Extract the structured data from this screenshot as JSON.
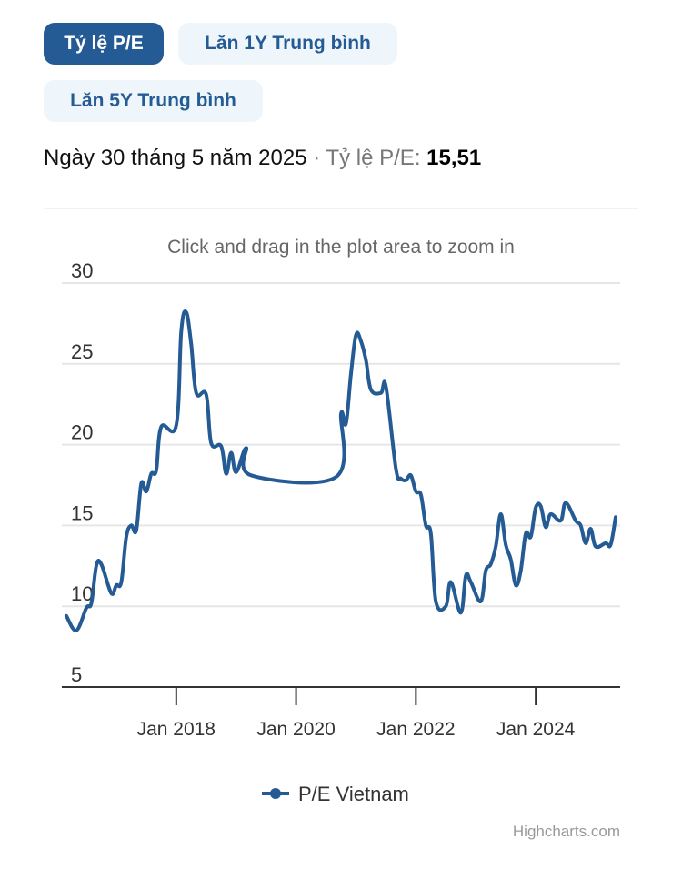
{
  "tabs": [
    {
      "label": "Tỷ lệ P/E",
      "active": true
    },
    {
      "label": "Lăn 1Y Trung bình",
      "active": false
    },
    {
      "label": "Lăn 5Y Trung bình",
      "active": false
    }
  ],
  "info": {
    "date": "Ngày 30 tháng 5 năm 2025",
    "separator": "·",
    "label": "Tỷ lệ P/E:",
    "value": "15,51"
  },
  "credit": "Highcharts.com",
  "colors": {
    "series": "#255b94",
    "grid": "#e6e6e6",
    "axis": "#333333"
  },
  "chart_data": {
    "type": "line",
    "subtitle": "Click and drag in the plot area to zoom in",
    "ylim": [
      5,
      30
    ],
    "yticks": [
      "5",
      "10",
      "15",
      "20",
      "25",
      "30"
    ],
    "xlim": [
      "2016-03",
      "2025-05"
    ],
    "xticks": [
      "Jan 2018",
      "Jan 2020",
      "Jan 2022",
      "Jan 2024"
    ],
    "grid": true,
    "legend": "bottom-center",
    "series": [
      {
        "name": "P/E Vietnam",
        "points": [
          [
            "2016-03",
            9.4
          ],
          [
            "2016-05",
            8.5
          ],
          [
            "2016-07",
            9.9
          ],
          [
            "2016-08",
            10.2
          ],
          [
            "2016-09",
            12.5
          ],
          [
            "2016-10",
            12.6
          ],
          [
            "2016-12",
            10.8
          ],
          [
            "2017-01",
            11.3
          ],
          [
            "2017-02",
            11.5
          ],
          [
            "2017-03",
            14.3
          ],
          [
            "2017-04",
            15.0
          ],
          [
            "2017-05",
            14.7
          ],
          [
            "2017-06",
            17.6
          ],
          [
            "2017-07",
            17.1
          ],
          [
            "2017-08",
            18.2
          ],
          [
            "2017-09",
            18.4
          ],
          [
            "2017-10",
            21.1
          ],
          [
            "2018-01",
            21.2
          ],
          [
            "2018-02",
            27.0
          ],
          [
            "2018-03",
            28.2
          ],
          [
            "2018-04",
            26.2
          ],
          [
            "2018-05",
            23.2
          ],
          [
            "2018-07",
            23.1
          ],
          [
            "2018-08",
            20.1
          ],
          [
            "2018-10",
            19.9
          ],
          [
            "2018-11",
            18.2
          ],
          [
            "2018-12",
            19.5
          ],
          [
            "2019-01",
            18.3
          ],
          [
            "2019-03",
            19.8
          ],
          [
            "2019-04",
            18.1
          ],
          [
            "2020-09",
            18.0
          ],
          [
            "2020-10",
            21.9
          ],
          [
            "2020-11",
            21.3
          ],
          [
            "2020-12",
            24.4
          ],
          [
            "2021-01",
            26.8
          ],
          [
            "2021-02",
            26.4
          ],
          [
            "2021-03",
            25.2
          ],
          [
            "2021-04",
            23.4
          ],
          [
            "2021-06",
            23.2
          ],
          [
            "2021-07",
            23.6
          ],
          [
            "2021-09",
            18.5
          ],
          [
            "2021-10",
            17.9
          ],
          [
            "2021-11",
            17.8
          ],
          [
            "2021-12",
            18.1
          ],
          [
            "2022-01",
            17.1
          ],
          [
            "2022-02",
            16.9
          ],
          [
            "2022-03",
            15.0
          ],
          [
            "2022-04",
            14.5
          ],
          [
            "2022-05",
            10.3
          ],
          [
            "2022-07",
            10.0
          ],
          [
            "2022-08",
            11.5
          ],
          [
            "2022-10",
            9.6
          ],
          [
            "2022-11",
            11.9
          ],
          [
            "2022-12",
            11.5
          ],
          [
            "2023-02",
            10.3
          ],
          [
            "2023-03",
            12.2
          ],
          [
            "2023-04",
            12.6
          ],
          [
            "2023-05",
            13.7
          ],
          [
            "2023-06",
            15.7
          ],
          [
            "2023-07",
            13.8
          ],
          [
            "2023-08",
            12.9
          ],
          [
            "2023-09",
            11.3
          ],
          [
            "2023-10",
            12.2
          ],
          [
            "2023-11",
            14.5
          ],
          [
            "2023-12",
            14.3
          ],
          [
            "2024-01",
            16.1
          ],
          [
            "2024-02",
            16.2
          ],
          [
            "2024-03",
            14.9
          ],
          [
            "2024-04",
            15.7
          ],
          [
            "2024-06",
            15.3
          ],
          [
            "2024-07",
            16.4
          ],
          [
            "2024-09",
            15.3
          ],
          [
            "2024-10",
            15.0
          ],
          [
            "2024-11",
            13.9
          ],
          [
            "2024-12",
            14.8
          ],
          [
            "2025-01",
            13.7
          ],
          [
            "2025-03",
            13.9
          ],
          [
            "2025-04",
            13.8
          ],
          [
            "2025-05",
            15.51
          ]
        ]
      }
    ]
  }
}
